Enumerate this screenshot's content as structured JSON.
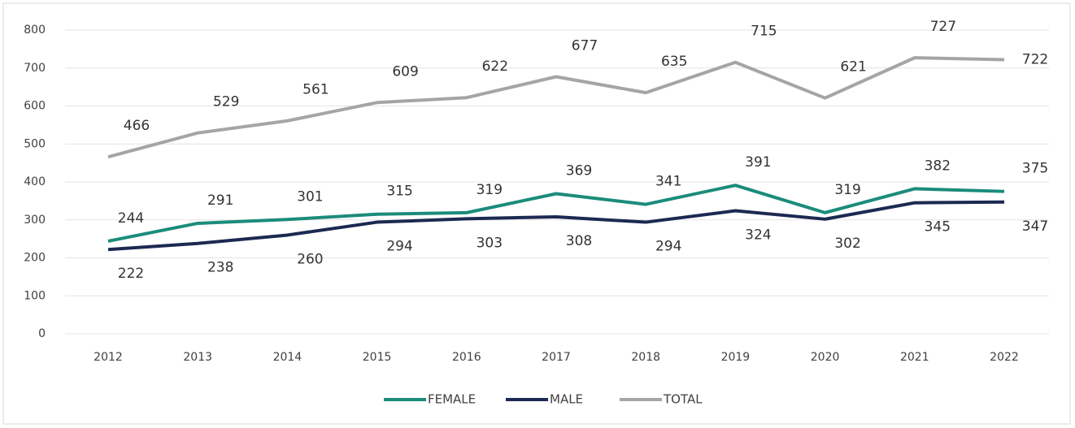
{
  "chart_data": {
    "type": "line",
    "categories": [
      "2012",
      "2013",
      "2014",
      "2015",
      "2016",
      "2017",
      "2018",
      "2019",
      "2020",
      "2021",
      "2022"
    ],
    "series": [
      {
        "name": "FEMALE",
        "color": "#1b8c7b",
        "values": [
          244,
          291,
          301,
          315,
          319,
          369,
          341,
          391,
          319,
          382,
          375
        ]
      },
      {
        "name": "MALE",
        "color": "#1c2952",
        "values": [
          222,
          238,
          260,
          294,
          303,
          308,
          294,
          324,
          302,
          345,
          347
        ]
      },
      {
        "name": "TOTAL",
        "color": "#a5a5a5",
        "values": [
          466,
          529,
          561,
          609,
          622,
          677,
          635,
          715,
          621,
          727,
          722
        ]
      }
    ],
    "ylim": [
      0,
      800
    ],
    "yticks": [
      0,
      100,
      200,
      300,
      400,
      500,
      600,
      700,
      800
    ],
    "grid": true,
    "legend": "bottom"
  }
}
